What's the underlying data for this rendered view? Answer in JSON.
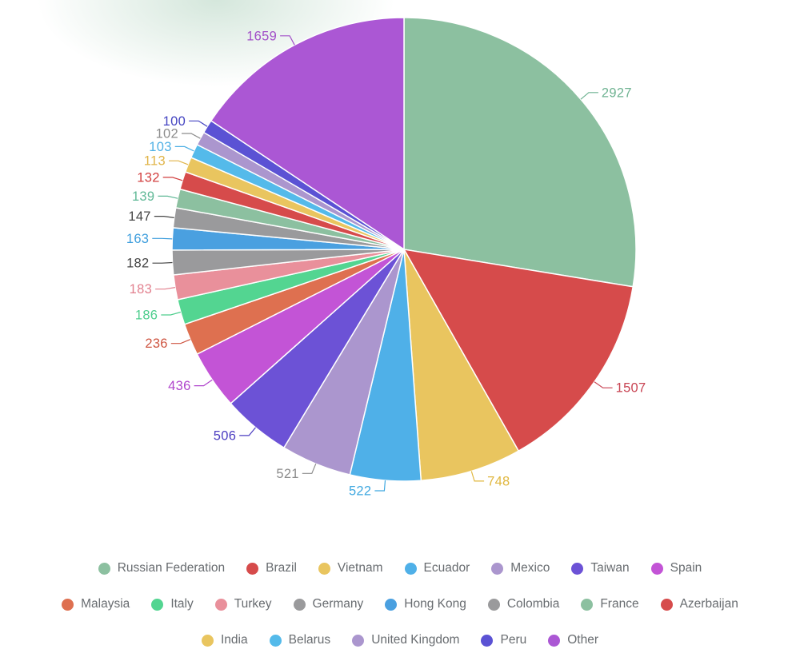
{
  "chart_data": {
    "type": "pie",
    "title": "",
    "legend_position": "bottom",
    "direction": "clockwise",
    "start_angle": "top",
    "items": [
      {
        "name": "Russian Federation",
        "value": 2927,
        "color": "#8cc0a0",
        "label_color": "#6fb392"
      },
      {
        "name": "Brazil",
        "value": 1507,
        "color": "#d64b4b",
        "label_color": "#c84453"
      },
      {
        "name": "Vietnam",
        "value": 748,
        "color": "#e9c55f",
        "label_color": "#e0b73f"
      },
      {
        "name": "Ecuador",
        "value": 522,
        "color": "#4fb0e8",
        "label_color": "#3fa8e0"
      },
      {
        "name": "Mexico",
        "value": 521,
        "color": "#ab96ce",
        "label_color": "#8c8c8c"
      },
      {
        "name": "Taiwan",
        "value": 506,
        "color": "#6c52d6",
        "label_color": "#4b3dc1"
      },
      {
        "name": "Spain",
        "value": 436,
        "color": "#c354d6",
        "label_color": "#b044cc"
      },
      {
        "name": "Malaysia",
        "value": 236,
        "color": "#de7050",
        "label_color": "#ce5440"
      },
      {
        "name": "Italy",
        "value": 186,
        "color": "#53d591",
        "label_color": "#4fce8e"
      },
      {
        "name": "Turkey",
        "value": 183,
        "color": "#e9909b",
        "label_color": "#e2808e"
      },
      {
        "name": "Germany",
        "value": 182,
        "color": "#9a9a9c",
        "label_color": "#454545"
      },
      {
        "name": "Hong Kong",
        "value": 163,
        "color": "#4aa0e0",
        "label_color": "#3e9edd"
      },
      {
        "name": "Colombia",
        "value": 147,
        "color": "#9a9a9c",
        "label_color": "#454545"
      },
      {
        "name": "France",
        "value": 139,
        "color": "#8cc0a0",
        "label_color": "#5fb896"
      },
      {
        "name": "Azerbaijan",
        "value": 132,
        "color": "#d64b4b",
        "label_color": "#d23f3f"
      },
      {
        "name": "India",
        "value": 113,
        "color": "#e9c55f",
        "label_color": "#e0b448"
      },
      {
        "name": "Belarus",
        "value": 103,
        "color": "#54baea",
        "label_color": "#4fb0e5"
      },
      {
        "name": "United Kingdom",
        "value": 102,
        "color": "#ab96ce",
        "label_color": "#8c8c8c"
      },
      {
        "name": "Peru",
        "value": 100,
        "color": "#5b52d4",
        "label_color": "#4545c2"
      },
      {
        "name": "Other",
        "value": 1659,
        "color": "#ab57d4",
        "label_color": "#a24fc8"
      }
    ]
  },
  "legend": {
    "rows": [
      [
        0,
        1,
        2,
        3,
        4,
        5,
        6
      ],
      [
        7,
        8,
        9,
        10,
        11,
        12,
        13,
        14
      ],
      [
        15,
        16,
        17,
        18,
        19
      ]
    ]
  },
  "decor": {
    "blob_color": "#8fbfa2"
  }
}
